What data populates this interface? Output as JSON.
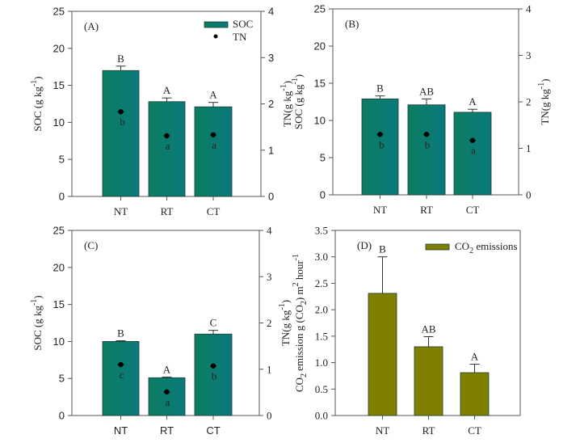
{
  "chart_data": [
    {
      "type": "bar",
      "panel_label": "(A)",
      "categories": [
        "NT",
        "RT",
        "CT"
      ],
      "series": [
        {
          "name": "SOC",
          "axis": "left",
          "values": [
            17.0,
            12.8,
            12.1
          ],
          "error_upper": [
            17.6,
            13.3,
            12.7
          ],
          "letters": [
            "B",
            "A",
            "A"
          ]
        },
        {
          "name": "TN",
          "axis": "right",
          "marker": "dot",
          "values": [
            1.83,
            1.31,
            1.33
          ],
          "letters": [
            "b",
            "a",
            "a"
          ]
        }
      ],
      "ylabel": "SOC (g kg-1)",
      "y2label": "TN(g kg-1)",
      "ylim": [
        0,
        25
      ],
      "yticks": [
        "0",
        "5",
        "10",
        "15",
        "20",
        "25"
      ],
      "y2lim": [
        0,
        4
      ],
      "y2ticks": [
        "0",
        "1",
        "2",
        "3",
        "4"
      ],
      "legend": {
        "position": "top-right",
        "entries": [
          "SOC",
          "TN"
        ]
      }
    },
    {
      "type": "bar",
      "panel_label": "(B)",
      "categories": [
        "NT",
        "RT",
        "CT"
      ],
      "series": [
        {
          "name": "SOC",
          "axis": "left",
          "values": [
            12.9,
            12.1,
            11.1
          ],
          "error_upper": [
            13.3,
            12.9,
            11.5
          ],
          "letters": [
            "B",
            "AB",
            "A"
          ]
        },
        {
          "name": "TN",
          "axis": "right",
          "marker": "dot",
          "values": [
            1.3,
            1.3,
            1.17
          ],
          "letters": [
            "b",
            "b",
            "a"
          ]
        }
      ],
      "ylabel": "SOC (g kg-1)",
      "y2label": "TN(g kg-1)",
      "ylim": [
        0,
        25
      ],
      "yticks": [
        "0",
        "5",
        "10",
        "15",
        "20",
        "25"
      ],
      "y2lim": [
        0,
        4
      ],
      "y2ticks": [
        "0",
        "1",
        "2",
        "3",
        "4"
      ]
    },
    {
      "type": "bar",
      "panel_label": "(C)",
      "categories": [
        "NT",
        "RT",
        "CT"
      ],
      "series": [
        {
          "name": "SOC",
          "axis": "left",
          "values": [
            10.0,
            5.1,
            11.0
          ],
          "error_upper": [
            10.1,
            5.2,
            11.5
          ],
          "letters": [
            "B",
            "A",
            "C"
          ]
        },
        {
          "name": "TN",
          "axis": "right",
          "marker": "dot",
          "values": [
            1.1,
            0.51,
            1.07
          ],
          "letters": [
            "c",
            "a",
            "b"
          ]
        }
      ],
      "ylabel": "SOC (g kg-1)",
      "y2label": "TN(g kg-1)",
      "ylim": [
        0,
        25
      ],
      "yticks": [
        "0",
        "5",
        "10",
        "15",
        "20",
        "25"
      ],
      "y2lim": [
        0,
        4
      ],
      "y2ticks": [
        "0",
        "1",
        "2",
        "3",
        "4"
      ]
    },
    {
      "type": "bar",
      "panel_label": "(D)",
      "categories": [
        "NT",
        "RT",
        "CT"
      ],
      "series": [
        {
          "name": "CO2 emissions",
          "axis": "left",
          "values": [
            2.31,
            1.3,
            0.81
          ],
          "error_upper": [
            3.0,
            1.49,
            0.97
          ],
          "letters": [
            "B",
            "AB",
            "A"
          ]
        }
      ],
      "ylabel": "CO2 emission g (CO2) m2 hour-1",
      "ylim": [
        0,
        3.5
      ],
      "yticks": [
        "0.0",
        "0.5",
        "1.0",
        "1.5",
        "2.0",
        "2.5",
        "3.0",
        "3.5"
      ],
      "legend": {
        "position": "top-right",
        "entries": [
          "CO2 emissions"
        ]
      }
    }
  ],
  "colors": {
    "soc_bar_left": "#0c7c62",
    "soc_bar_right": "#0a7a7c",
    "co2_bar": "#808000",
    "marker": "#000000"
  },
  "text": {
    "soc_ylabel_main": "SOC (g kg",
    "soc_ylabel_sup": "-1",
    "soc_ylabel_end": ")",
    "tn_ylabel_main": "TN(g kg",
    "tn_ylabel_sup": "-1",
    "tn_ylabel_end": ")",
    "co2_ylabel_a": "CO",
    "co2_ylabel_sub": "2",
    "co2_ylabel_b": " emission g (CO",
    "co2_ylabel_sub2": "2",
    "co2_ylabel_c": ") m",
    "co2_ylabel_sup": "2",
    "co2_ylabel_d": " hour",
    "co2_ylabel_sup2": "-1",
    "legend_soc": "SOC",
    "legend_tn": "TN",
    "legend_co2_a": "CO",
    "legend_co2_sub": "2",
    "legend_co2_b": " emissions"
  }
}
